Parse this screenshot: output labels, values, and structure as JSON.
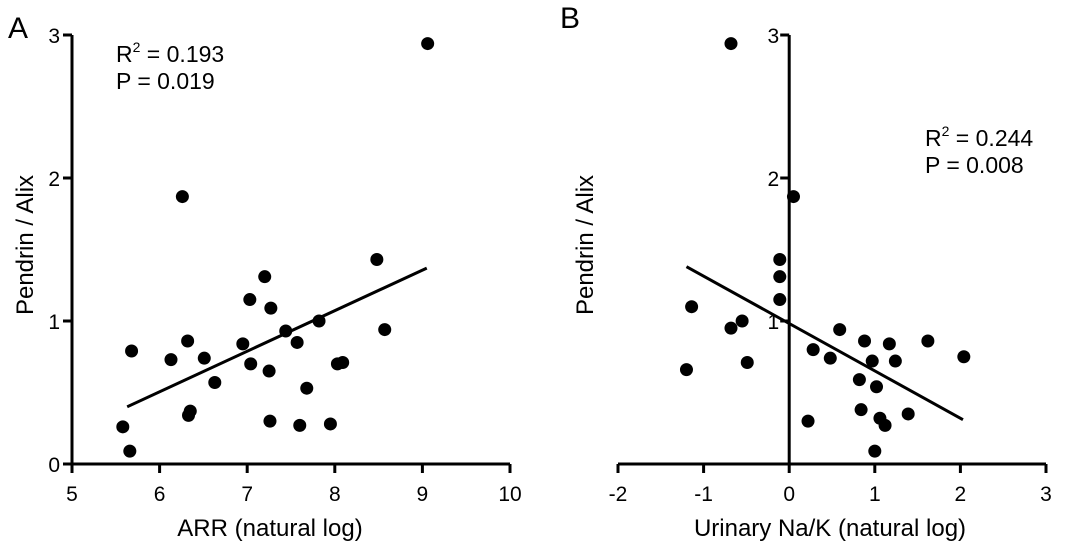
{
  "chart_data": [
    {
      "panel": "A",
      "type": "scatter",
      "xlabel": "ARR (natural log)",
      "ylabel": "Pendrin / Alix",
      "xlim": [
        5,
        10
      ],
      "ylim": [
        0,
        3
      ],
      "xticks": [
        "5",
        "6",
        "7",
        "8",
        "9",
        "10"
      ],
      "yticks": [
        "0",
        "1",
        "2",
        "3"
      ],
      "stats": {
        "r2_label": "R",
        "r2_sup": "2",
        "r2_value": " = 0.193",
        "p_text": "P = 0.019"
      },
      "fit": {
        "x": [
          5.63,
          9.05
        ],
        "y": [
          0.4,
          1.37
        ]
      },
      "points": [
        {
          "x": 5.58,
          "y": 0.26
        },
        {
          "x": 5.66,
          "y": 0.09
        },
        {
          "x": 5.68,
          "y": 0.79
        },
        {
          "x": 6.13,
          "y": 0.73
        },
        {
          "x": 6.26,
          "y": 1.87
        },
        {
          "x": 6.32,
          "y": 0.86
        },
        {
          "x": 6.33,
          "y": 0.34
        },
        {
          "x": 6.35,
          "y": 0.37
        },
        {
          "x": 6.51,
          "y": 0.74
        },
        {
          "x": 6.63,
          "y": 0.57
        },
        {
          "x": 6.95,
          "y": 0.84
        },
        {
          "x": 7.03,
          "y": 1.15
        },
        {
          "x": 7.04,
          "y": 0.7
        },
        {
          "x": 7.2,
          "y": 1.31
        },
        {
          "x": 7.25,
          "y": 0.65
        },
        {
          "x": 7.26,
          "y": 0.3
        },
        {
          "x": 7.27,
          "y": 1.09
        },
        {
          "x": 7.44,
          "y": 0.93
        },
        {
          "x": 7.57,
          "y": 0.85
        },
        {
          "x": 7.6,
          "y": 0.27
        },
        {
          "x": 7.68,
          "y": 0.53
        },
        {
          "x": 7.82,
          "y": 1.0
        },
        {
          "x": 7.95,
          "y": 0.28
        },
        {
          "x": 8.03,
          "y": 0.7
        },
        {
          "x": 8.09,
          "y": 0.71
        },
        {
          "x": 8.48,
          "y": 1.43
        },
        {
          "x": 8.57,
          "y": 0.94
        },
        {
          "x": 9.06,
          "y": 2.94
        }
      ]
    },
    {
      "panel": "B",
      "type": "scatter",
      "xlabel": "Urinary Na/K (natural log)",
      "ylabel": "Pendrin / Alix",
      "xlim": [
        -2,
        3
      ],
      "ylim": [
        0,
        3
      ],
      "xticks": [
        "-2",
        "-1",
        "0",
        "1",
        "2",
        "3"
      ],
      "yticks": [
        "1",
        "2",
        "3"
      ],
      "stats": {
        "r2_label": "R",
        "r2_sup": "2",
        "r2_value": " = 0.244",
        "p_text": "P = 0.008"
      },
      "fit": {
        "x": [
          -1.2,
          2.03
        ],
        "y": [
          1.38,
          0.31
        ]
      },
      "points": [
        {
          "x": -1.2,
          "y": 0.66
        },
        {
          "x": -1.14,
          "y": 1.1
        },
        {
          "x": -0.68,
          "y": 2.94
        },
        {
          "x": -0.68,
          "y": 0.95
        },
        {
          "x": -0.55,
          "y": 1.0
        },
        {
          "x": -0.49,
          "y": 0.71
        },
        {
          "x": -0.11,
          "y": 1.43
        },
        {
          "x": -0.11,
          "y": 1.31
        },
        {
          "x": -0.11,
          "y": 1.15
        },
        {
          "x": 0.05,
          "y": 1.87
        },
        {
          "x": 0.22,
          "y": 0.3
        },
        {
          "x": 0.28,
          "y": 0.8
        },
        {
          "x": 0.48,
          "y": 0.74
        },
        {
          "x": 0.59,
          "y": 0.94
        },
        {
          "x": 0.82,
          "y": 0.59
        },
        {
          "x": 0.84,
          "y": 0.38
        },
        {
          "x": 0.88,
          "y": 0.86
        },
        {
          "x": 0.97,
          "y": 0.72
        },
        {
          "x": 1.02,
          "y": 0.54
        },
        {
          "x": 1.0,
          "y": 0.09
        },
        {
          "x": 1.06,
          "y": 0.32
        },
        {
          "x": 1.12,
          "y": 0.27
        },
        {
          "x": 1.17,
          "y": 0.84
        },
        {
          "x": 1.24,
          "y": 0.72
        },
        {
          "x": 1.39,
          "y": 0.35
        },
        {
          "x": 1.62,
          "y": 0.86
        },
        {
          "x": 2.04,
          "y": 0.75
        }
      ]
    }
  ]
}
